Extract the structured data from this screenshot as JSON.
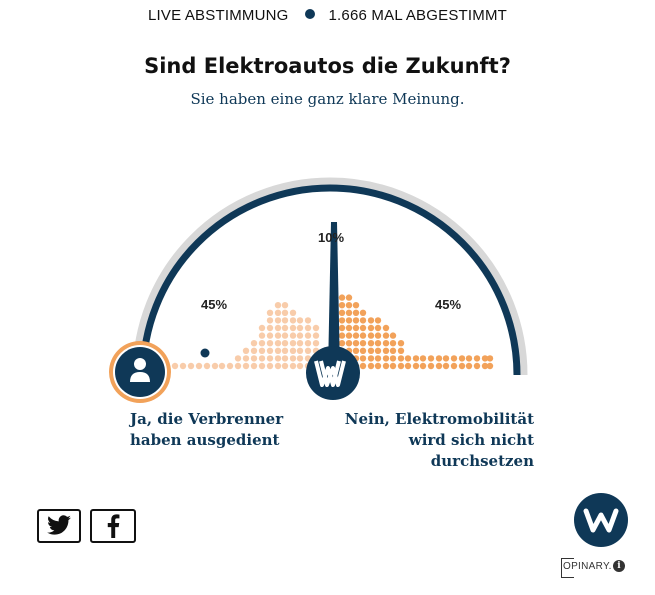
{
  "header": {
    "live_label": "LIVE ABSTIMMUNG",
    "votes_label": "1.666 MAL ABGESTIMMT"
  },
  "poll": {
    "question": "Sind Elektroautos die Zukunft?",
    "user_choice_text": "Sie haben eine ganz klare Meinung.",
    "options": [
      {
        "label": "Ja, die Verbrenner haben ausgedient",
        "percent": "45%",
        "share": 45
      },
      {
        "label": "",
        "percent": "10%",
        "share": 10
      },
      {
        "label": "Nein, Elektromobilität wird sich nicht durchsetzen",
        "percent": "45%",
        "share": 45
      }
    ],
    "user_position_fraction": 0.0,
    "needle_position_fraction": 0.5
  },
  "share": {
    "twitter_icon": "twitter-icon",
    "facebook_icon": "facebook-icon"
  },
  "brand": {
    "logo_letter": "W",
    "opinary_text": "OPINARY.",
    "info_glyph": "i"
  },
  "colors": {
    "navy": "#0f3857",
    "orange": "#f2a25a",
    "orange_light": "#f8ccaa",
    "gray_arc": "#d8d8d8"
  }
}
